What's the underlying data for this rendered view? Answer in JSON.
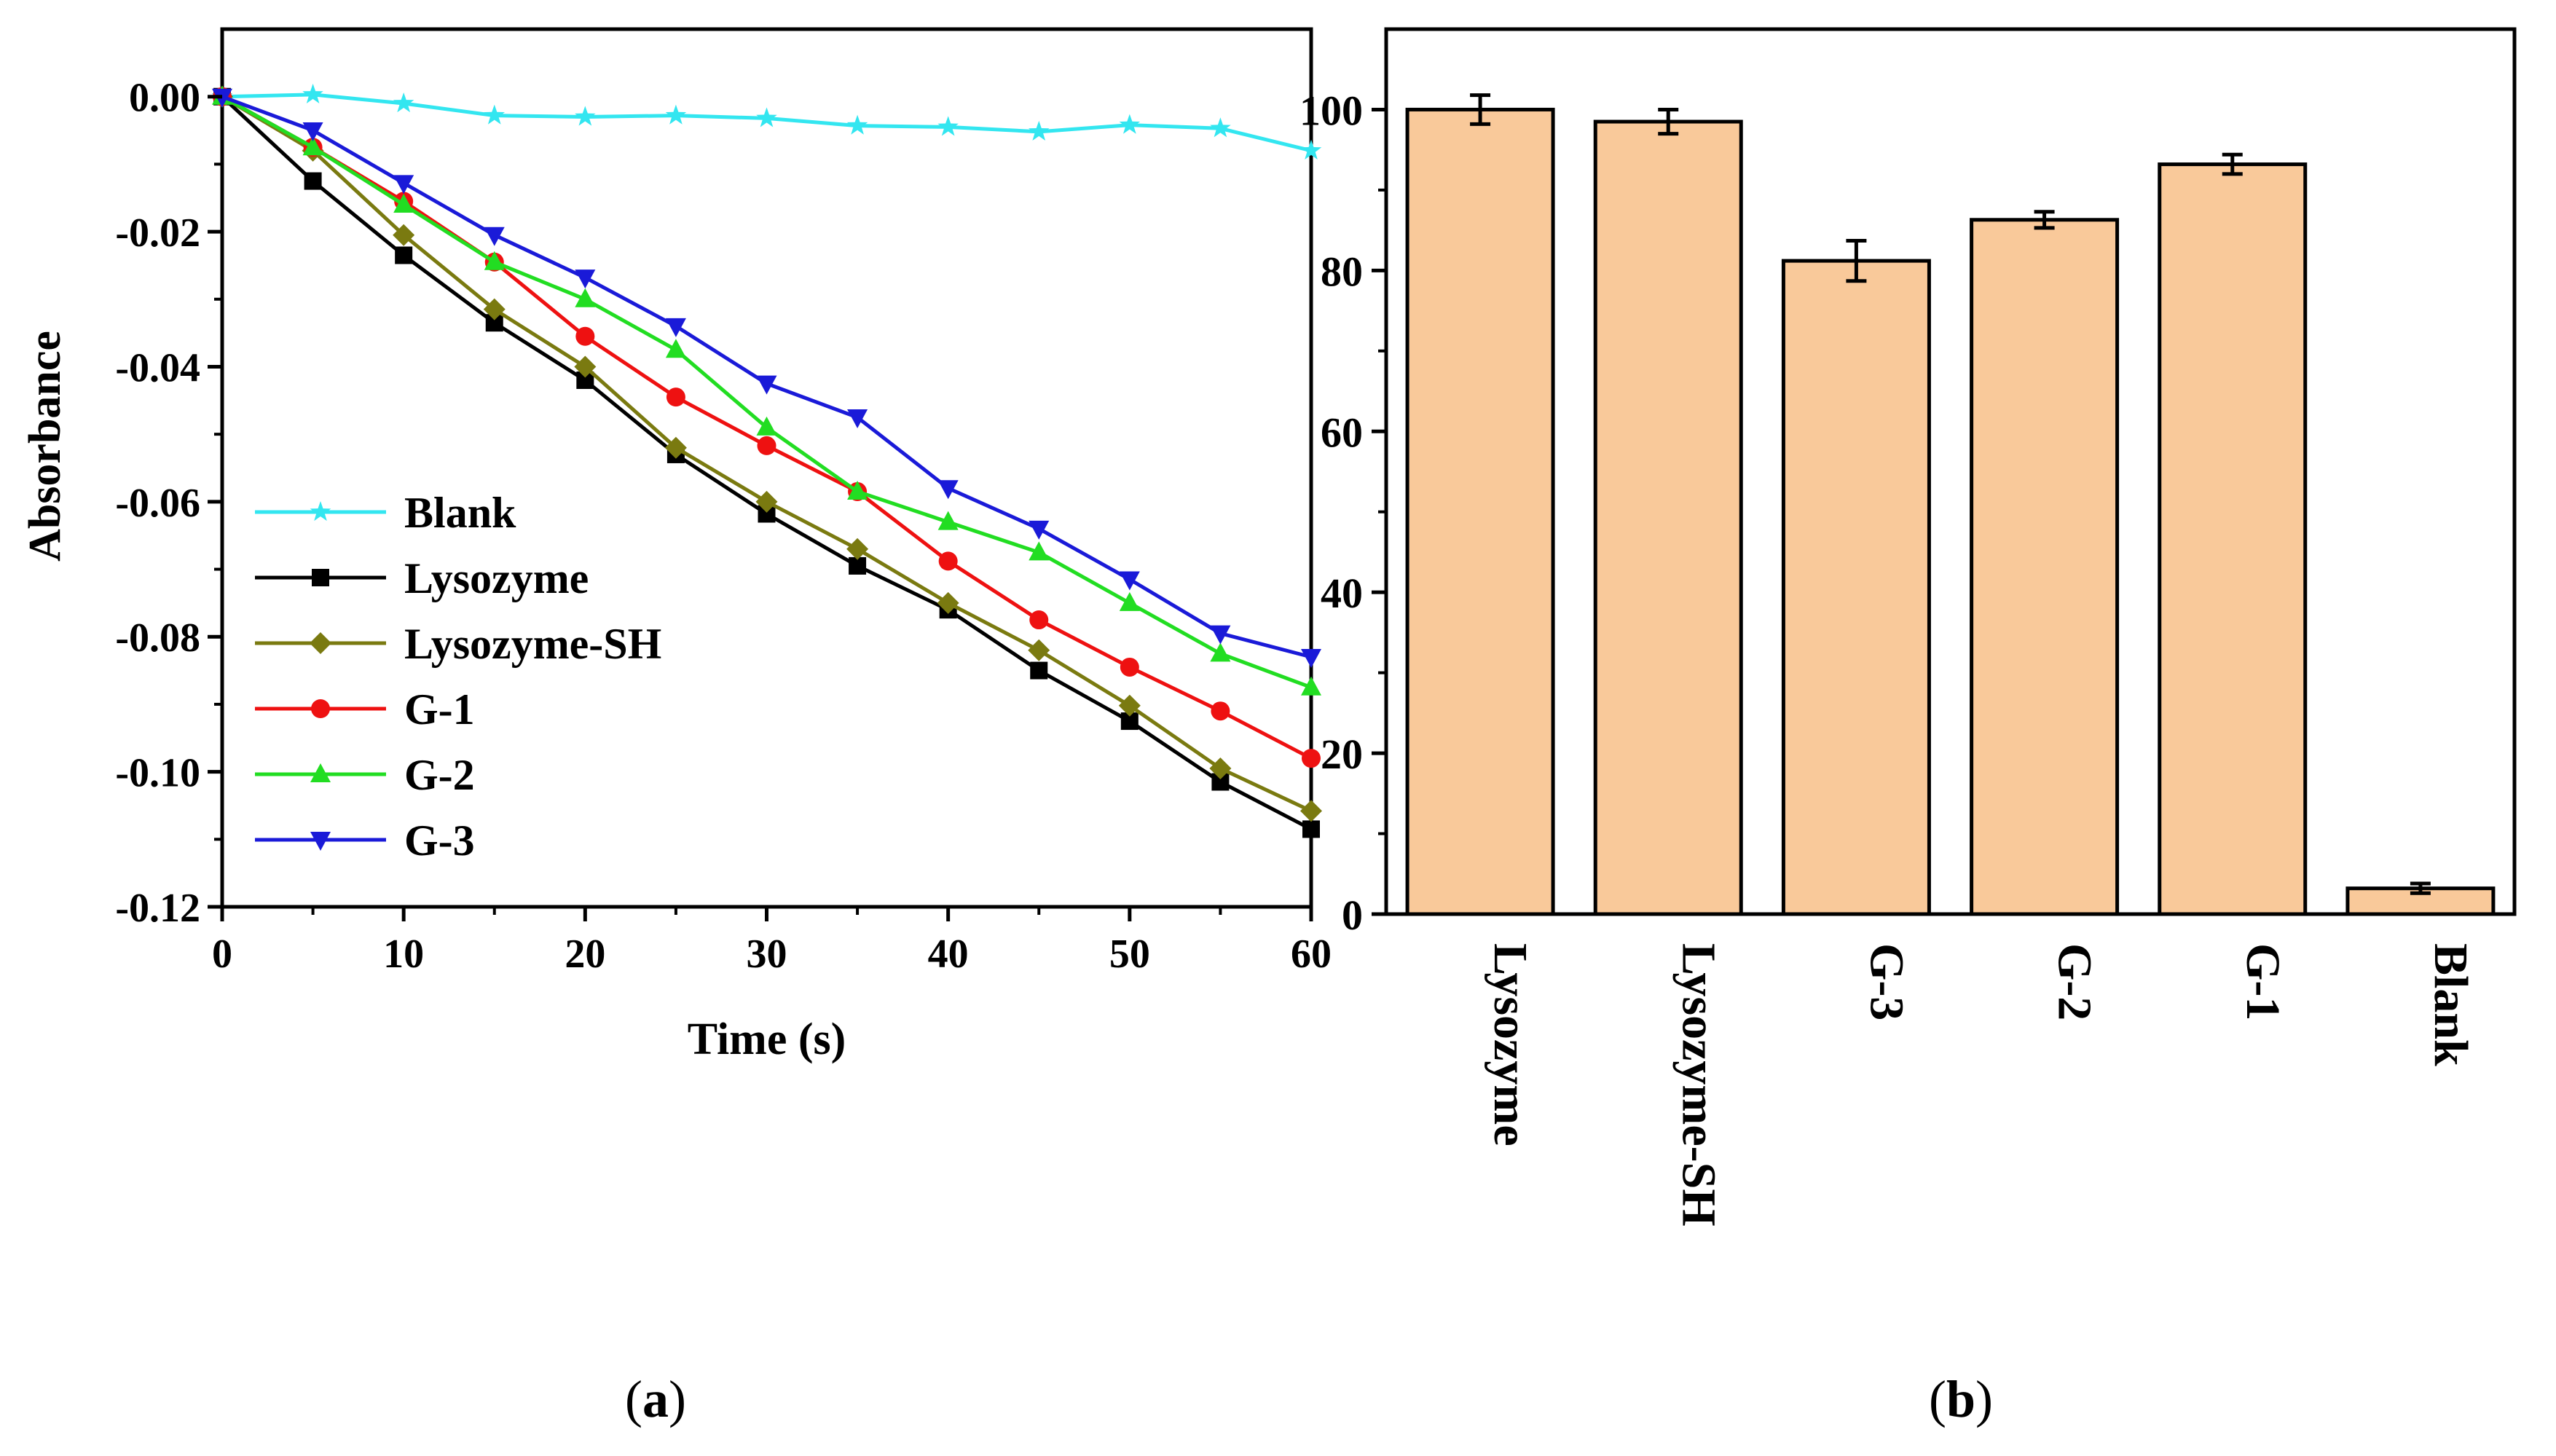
{
  "chart_data": [
    {
      "type": "line",
      "panel": "a",
      "title": "",
      "xlabel": "Time (s)",
      "ylabel": "Absorbance",
      "xlim": [
        0,
        60
      ],
      "ylim": [
        -0.12,
        0.01
      ],
      "xticks": [
        0,
        10,
        20,
        30,
        40,
        50,
        60
      ],
      "yticks": [
        0.0,
        -0.02,
        -0.04,
        -0.06,
        -0.08,
        -0.1,
        -0.12
      ],
      "ytick_labels": [
        "0.00",
        "-0.02",
        "-0.04",
        "-0.06",
        "-0.08",
        "-0.10",
        "-0.12"
      ],
      "grid": false,
      "legend_position": "center-left",
      "x": [
        0,
        5,
        10,
        15,
        20,
        25,
        30,
        35,
        40,
        45,
        50,
        55,
        60
      ],
      "series": [
        {
          "name": "Blank",
          "color": "#33e6f0",
          "marker": "star",
          "values": [
            0.0,
            0.0003,
            -0.001,
            -0.0028,
            -0.003,
            -0.0028,
            -0.0032,
            -0.0043,
            -0.0045,
            -0.0052,
            -0.0042,
            -0.0047,
            -0.008
          ]
        },
        {
          "name": "Lysozyme",
          "color": "#000000",
          "marker": "square",
          "values": [
            0.0,
            -0.0125,
            -0.0235,
            -0.0335,
            -0.042,
            -0.053,
            -0.0618,
            -0.0695,
            -0.076,
            -0.085,
            -0.0925,
            -0.1015,
            -0.1085
          ]
        },
        {
          "name": "Lysozyme-SH",
          "color": "#7a7a10",
          "marker": "diamond",
          "values": [
            0.0,
            -0.008,
            -0.0205,
            -0.0315,
            -0.04,
            -0.052,
            -0.06,
            -0.067,
            -0.075,
            -0.082,
            -0.0902,
            -0.0995,
            -0.1058
          ]
        },
        {
          "name": "G-1",
          "color": "#ee1111",
          "marker": "circle",
          "values": [
            0.0,
            -0.0075,
            -0.0155,
            -0.0245,
            -0.0355,
            -0.0445,
            -0.0517,
            -0.0585,
            -0.0688,
            -0.0775,
            -0.0845,
            -0.091,
            -0.098
          ]
        },
        {
          "name": "G-2",
          "color": "#22dd22",
          "marker": "triangle-up",
          "values": [
            0.0,
            -0.0075,
            -0.016,
            -0.0245,
            -0.03,
            -0.0375,
            -0.049,
            -0.0585,
            -0.063,
            -0.0675,
            -0.075,
            -0.0825,
            -0.0875
          ]
        },
        {
          "name": "G-3",
          "color": "#1a1ad8",
          "marker": "triangle-down",
          "values": [
            0.0,
            -0.005,
            -0.0128,
            -0.0205,
            -0.0268,
            -0.034,
            -0.0425,
            -0.0475,
            -0.058,
            -0.064,
            -0.0715,
            -0.0795,
            -0.083
          ]
        }
      ]
    },
    {
      "type": "bar",
      "panel": "b",
      "title": "",
      "xlabel": "",
      "ylabel": "",
      "ylim": [
        0,
        110
      ],
      "yticks": [
        0,
        20,
        40,
        60,
        80,
        100
      ],
      "grid": false,
      "bar_color": "#f9c99a",
      "categories": [
        "Lysozyme",
        "Lysozyme-SH",
        "G-3",
        "G-2",
        "G-1",
        "Blank"
      ],
      "values": [
        100,
        98.5,
        81.2,
        86.3,
        93.2,
        3.2
      ],
      "errors": [
        1.8,
        1.5,
        2.5,
        1.0,
        1.2,
        0.6
      ]
    }
  ],
  "panel_labels": {
    "a": "a",
    "b": "b"
  }
}
